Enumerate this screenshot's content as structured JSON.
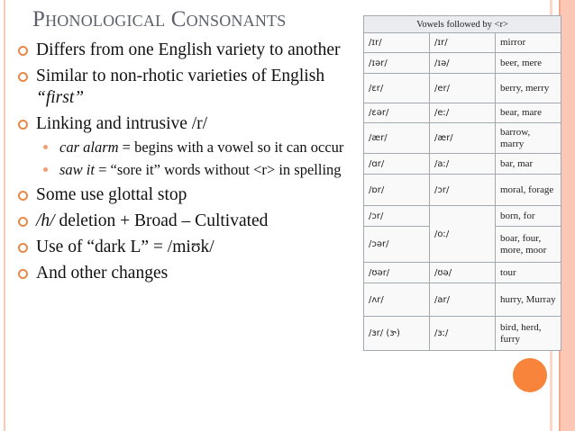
{
  "title": "Phonological Consonants",
  "bullets": [
    {
      "text": "Differs from one English variety to another"
    },
    {
      "pre": "Similar to non-rhotic varieties of English ",
      "italic": "“first”"
    },
    {
      "text": "Linking and intrusive /r/",
      "sub": [
        {
          "italic": "car alarm",
          "text": " = begins with a vowel so it can occur"
        },
        {
          "italic": "saw it",
          "text": " = “sore it” words without <r> in spelling"
        }
      ]
    },
    {
      "text": "Some use glottal stop"
    },
    {
      "italic": "/h/",
      "text": " deletion + Broad – Cultivated"
    },
    {
      "text": "Use of “dark L” = /miʊk/"
    },
    {
      "text": "And other changes"
    }
  ],
  "table": {
    "header": "Vowels followed by <r>",
    "rows": [
      [
        "/ɪr/",
        "/ɪr/",
        "mirror"
      ],
      [
        "/ɪər/",
        "/ɪə/",
        "beer, mere"
      ],
      [
        "/ɛr/",
        "/er/",
        "berry, merry"
      ],
      [
        "/ɛər/",
        "/eː/",
        "bear, mare"
      ],
      [
        "/ær/",
        "/ær/",
        "barrow, marry"
      ],
      [
        "/ɑr/",
        "/aː/",
        "bar, mar"
      ],
      [
        "/ɒr/",
        "/ɔr/",
        "moral, forage"
      ],
      [
        "/ɔr/",
        "/oː/",
        "born, for"
      ],
      [
        "/ɔər/",
        "",
        "boar, four, more, moor"
      ],
      [
        "/ʊər/",
        "/ʊə/",
        "tour"
      ],
      [
        "/ʌr/",
        "/ar/",
        "hurry, Murray"
      ],
      [
        "/ɜr/ (ɝ)",
        "/ɜː/",
        "bird, herd, furry"
      ]
    ]
  },
  "colors": {
    "accent": "#f7843a",
    "bullet": "#e8894a",
    "title": "#5b606c",
    "stripe": "#fcc8b5"
  }
}
